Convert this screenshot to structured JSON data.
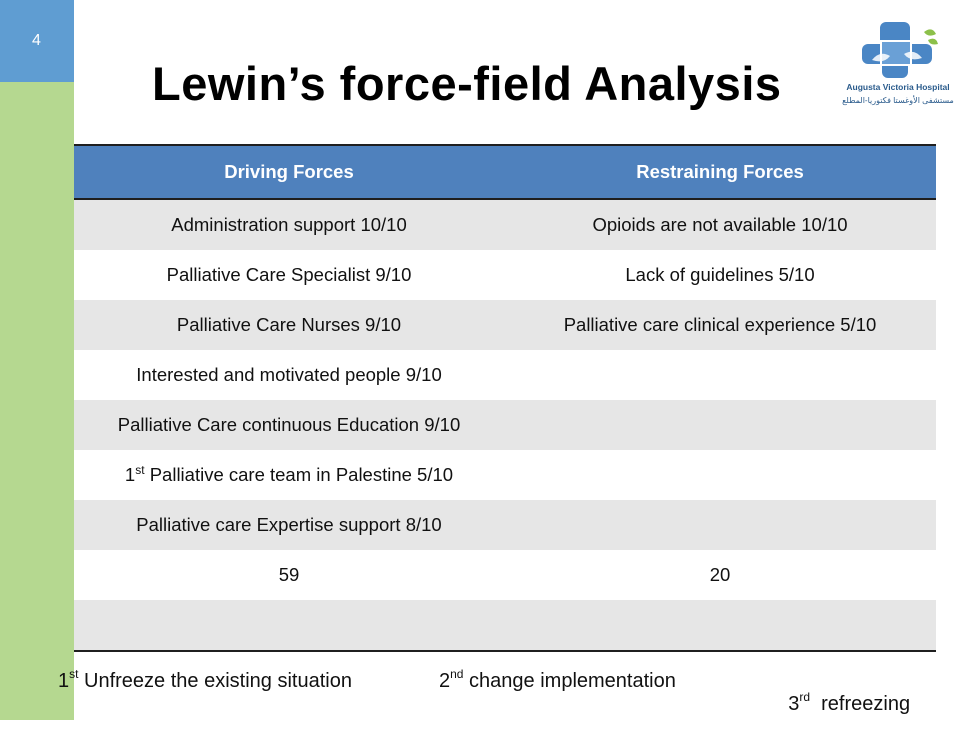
{
  "slide": {
    "number": "4",
    "title": "Lewin’s force-field Analysis"
  },
  "logo": {
    "name_en": "Augusta Victoria Hospital",
    "name_ar": "مستشفى الأوغستا فكتوريا-المطلع"
  },
  "table": {
    "headers": {
      "driving": "Driving Forces",
      "restraining": "Restraining Forces"
    },
    "rows": [
      {
        "driving": "Administration support  10/10",
        "restraining": "Opioids are not available 10/10"
      },
      {
        "driving": "Palliative Care Specialist  9/10",
        "restraining": "Lack of guidelines 5/10"
      },
      {
        "driving": "Palliative Care Nurses 9/10",
        "restraining": "Palliative care clinical experience 5/10"
      },
      {
        "driving": "Interested  and motivated people 9/10",
        "restraining": ""
      },
      {
        "driving": "Palliative Care continuous Education 9/10",
        "restraining": ""
      },
      {
        "driving_ordinal": "1",
        "driving_sup": "st",
        "driving": " Palliative care team in Palestine 5/10",
        "restraining": ""
      },
      {
        "driving": "Palliative care Expertise support 8/10",
        "restraining": ""
      },
      {
        "driving": "59",
        "restraining": "20"
      },
      {
        "driving": "",
        "restraining": ""
      }
    ]
  },
  "stages": [
    {
      "ordinal": "1",
      "suffix": "st",
      "text": " Unfreeze the existing situation"
    },
    {
      "ordinal": "2",
      "suffix": "nd",
      "text": " change implementation"
    },
    {
      "ordinal": "3",
      "suffix": "rd",
      "text": "  refreezing"
    }
  ],
  "colors": {
    "sidebar": "#b5d890",
    "slide_number_box": "#5f9dd2",
    "table_header": "#4f81bd",
    "row_shade": "#e6e6e6"
  }
}
